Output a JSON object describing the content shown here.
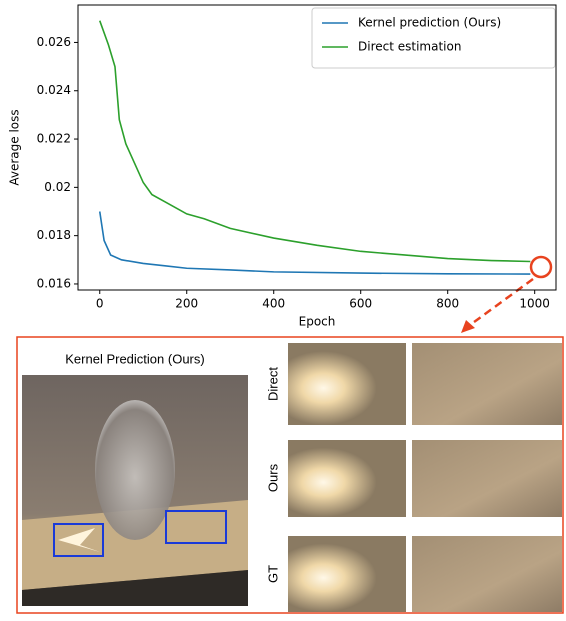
{
  "chart_data": {
    "type": "line",
    "x_label": "Epoch",
    "y_label": "Average loss",
    "xlim": [
      -50,
      1049
    ],
    "ylim": [
      0.01575,
      0.02755
    ],
    "xticks": [
      0,
      200,
      400,
      600,
      800,
      1000
    ],
    "yticks": [
      0.016,
      0.018,
      0.02,
      0.022,
      0.024,
      0.026
    ],
    "legend": "upper right",
    "series": [
      {
        "name": "Kernel prediction (Ours)",
        "color": "#1f77b4",
        "x": [
          0,
          10,
          25,
          50,
          100,
          150,
          200,
          300,
          400,
          600,
          800,
          990
        ],
        "values": [
          0.019,
          0.0178,
          0.0172,
          0.017,
          0.01685,
          0.01675,
          0.01665,
          0.01658,
          0.0165,
          0.01645,
          0.01642,
          0.01641
        ]
      },
      {
        "name": "Direct estimation",
        "color": "#2ca02c",
        "x": [
          0,
          20,
          35,
          45,
          60,
          80,
          100,
          120,
          150,
          180,
          200,
          240,
          300,
          400,
          500,
          600,
          700,
          800,
          900,
          990
        ],
        "values": [
          0.0269,
          0.0259,
          0.025,
          0.0228,
          0.0218,
          0.021,
          0.0202,
          0.0197,
          0.0194,
          0.0191,
          0.0189,
          0.0187,
          0.0183,
          0.0179,
          0.0176,
          0.01735,
          0.0172,
          0.01705,
          0.01697,
          0.01693
        ]
      }
    ]
  },
  "figure": {
    "panel_title": "Kernel Prediction (Ours)",
    "row_labels": [
      "Direct",
      "Ours",
      "GT"
    ]
  }
}
